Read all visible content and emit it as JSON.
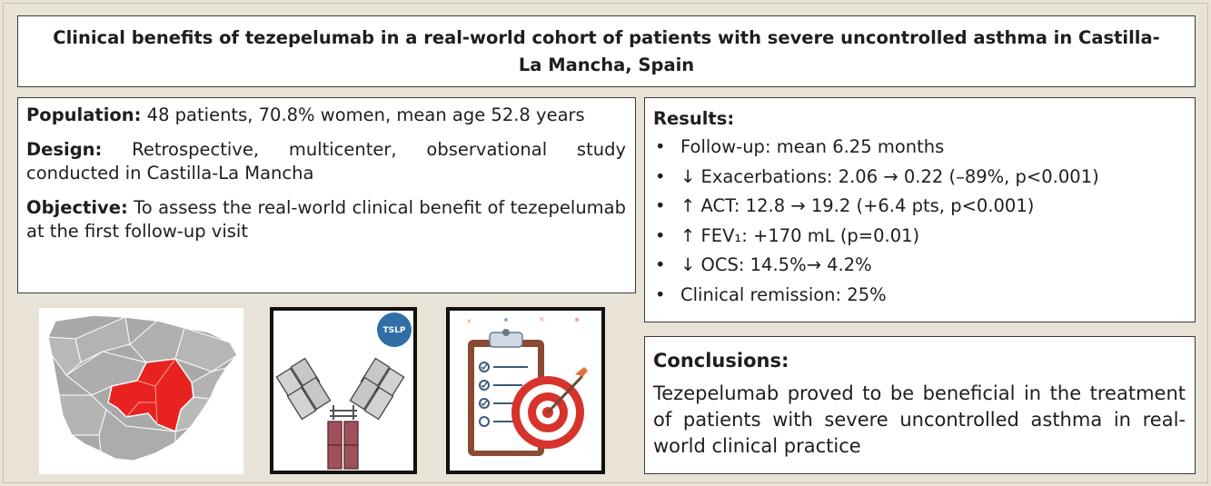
{
  "title": "Clinical benefits of tezepelumab in a real-world cohort of patients with severe uncontrolled asthma in Castilla-La Mancha, Spain",
  "population": {
    "label": "Population:",
    "text": " 48 patients, 70.8% women, mean age 52.8 years"
  },
  "design": {
    "label": "Design:",
    "text": " Retrospective, multicenter, observational study conducted in Castilla-La Mancha"
  },
  "objective": {
    "label": "Objective:",
    "text": " To assess the real-world clinical benefit of tezepelumab at the first follow-up visit"
  },
  "results": {
    "heading": "Results:",
    "items": [
      "Follow-up: mean 6.25 months",
      "↓ Exacerbations: 2.06 → 0.22 (–89%, p<0.001)",
      "↑ ACT: 12.8 → 19.2 (+6.4 pts, p<0.001)",
      "↑ FEV₁: +170 mL (p=0.01)",
      "↓ OCS: 14.5%→ 4.2%",
      "Clinical remission: 25%"
    ]
  },
  "conclusions": {
    "heading": "Conclusions:",
    "text": "Tezepelumab proved to be beneficial in the treatment of patients with severe uncontrolled asthma in real-world clinical practice"
  },
  "antibody_badge": "TSLP",
  "colors": {
    "background": "#e8e3d6",
    "region_highlight": "#e8231f",
    "map_gray": "#a9a9a9",
    "antibody_light": "#c7c7c7",
    "antibody_heavy": "#a0505a",
    "badge": "#2f6fa6",
    "target_red": "#d8322c",
    "clipboard_brown": "#8a4a32"
  },
  "icons": [
    "spain-map-icon",
    "antibody-icon",
    "clipboard-target-icon"
  ]
}
